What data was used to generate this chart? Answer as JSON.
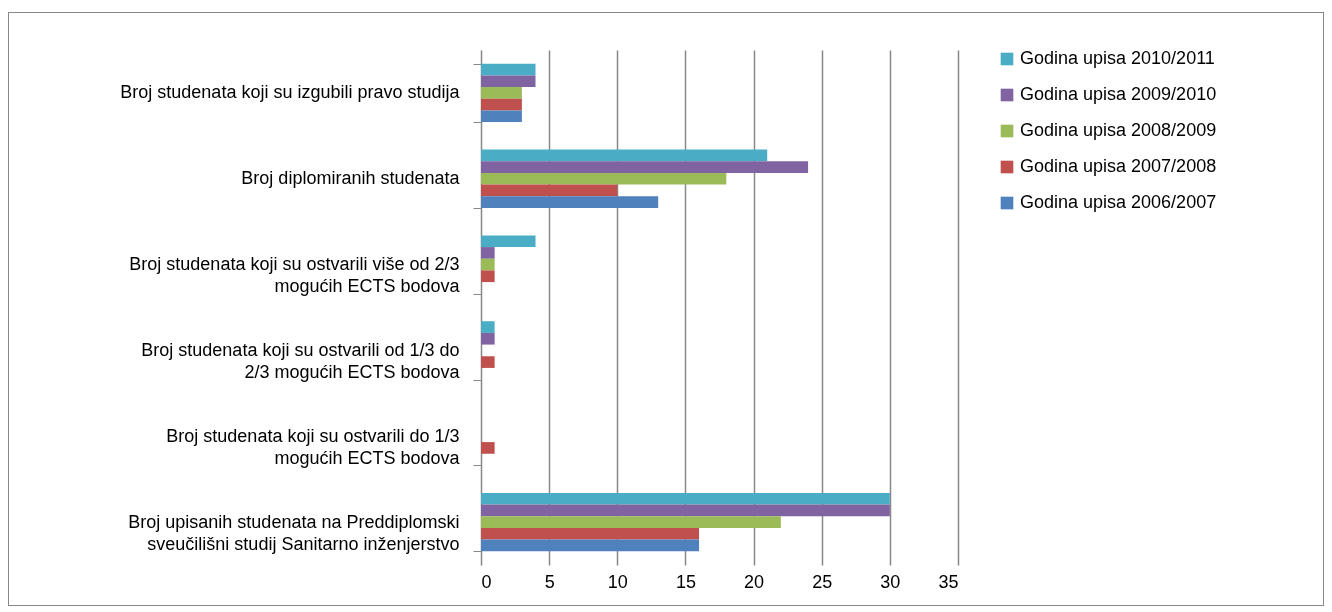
{
  "chart_data": {
    "type": "bar",
    "orientation": "horizontal",
    "categories": [
      "Broj studenata koji su izgubili pravo studija",
      "Broj diplomiranih studenata",
      "Broj studenata koji su ostvarili više od 2/3 mogućih ECTS bodova",
      "Broj studenata koji su ostvarili od 1/3 do 2/3 mogućih ECTS bodova",
      "Broj studenata koji su ostvarili do 1/3 mogućih ECTS bodova",
      "Broj upisanih studenata na Preddiplomski sveučilišni studij Sanitarno inženjerstvo"
    ],
    "series": [
      {
        "name": "Godina upisa 2010/2011",
        "color": "#4bacc6",
        "values": [
          4,
          21,
          4,
          1,
          0,
          30
        ]
      },
      {
        "name": "Godina upisa 2009/2010",
        "color": "#8064a2",
        "values": [
          4,
          24,
          1,
          1,
          0,
          30
        ]
      },
      {
        "name": "Godina upisa 2008/2009",
        "color": "#9bbb59",
        "values": [
          3,
          18,
          1,
          0,
          0,
          22
        ]
      },
      {
        "name": "Godina upisa 2007/2008",
        "color": "#c0504d",
        "values": [
          3,
          10,
          1,
          1,
          1,
          16
        ]
      },
      {
        "name": "Godina upisa 2006/2007",
        "color": "#4f81bd",
        "values": [
          3,
          13,
          0,
          0,
          0,
          16
        ]
      }
    ],
    "xlim": [
      0,
      35
    ],
    "xticks": [
      0,
      5,
      10,
      15,
      20,
      25,
      30,
      35
    ],
    "grid": "x",
    "legend": "right"
  }
}
